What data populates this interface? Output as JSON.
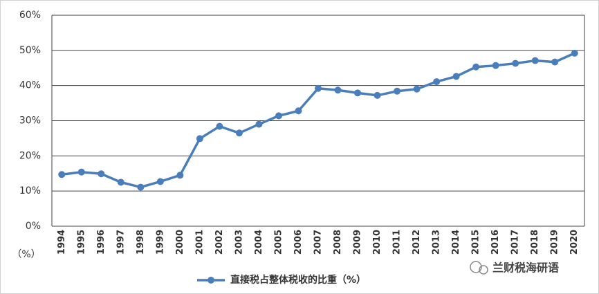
{
  "chart_data": {
    "type": "line",
    "categories": [
      "1994",
      "1995",
      "1996",
      "1997",
      "1998",
      "1999",
      "2000",
      "2001",
      "2002",
      "2003",
      "2004",
      "2005",
      "2006",
      "2007",
      "2008",
      "2009",
      "2010",
      "2011",
      "2012",
      "2013",
      "2014",
      "2015",
      "2016",
      "2017",
      "2018",
      "2019",
      "2020"
    ],
    "series": [
      {
        "name": "直接税占整体税收的比重（%）",
        "color": "#4a7ebb",
        "values": [
          14.7,
          15.4,
          14.9,
          12.5,
          11.1,
          12.7,
          14.5,
          24.9,
          28.4,
          26.5,
          29.0,
          31.4,
          32.8,
          39.2,
          38.7,
          37.9,
          37.2,
          38.4,
          39.0,
          41.1,
          42.6,
          45.3,
          45.7,
          46.3,
          47.1,
          46.7,
          49.2
        ]
      }
    ],
    "ylim": [
      0,
      60
    ],
    "yticks": [
      {
        "value": 0,
        "label": "0%"
      },
      {
        "value": 10,
        "label": "10%"
      },
      {
        "value": 20,
        "label": "20%"
      },
      {
        "value": 30,
        "label": "30%"
      },
      {
        "value": 40,
        "label": "40%"
      },
      {
        "value": 50,
        "label": "50%"
      },
      {
        "value": 60,
        "label": "60%"
      }
    ],
    "xlabel": "（%）",
    "grid": true,
    "watermark": "兰财税海研语"
  }
}
